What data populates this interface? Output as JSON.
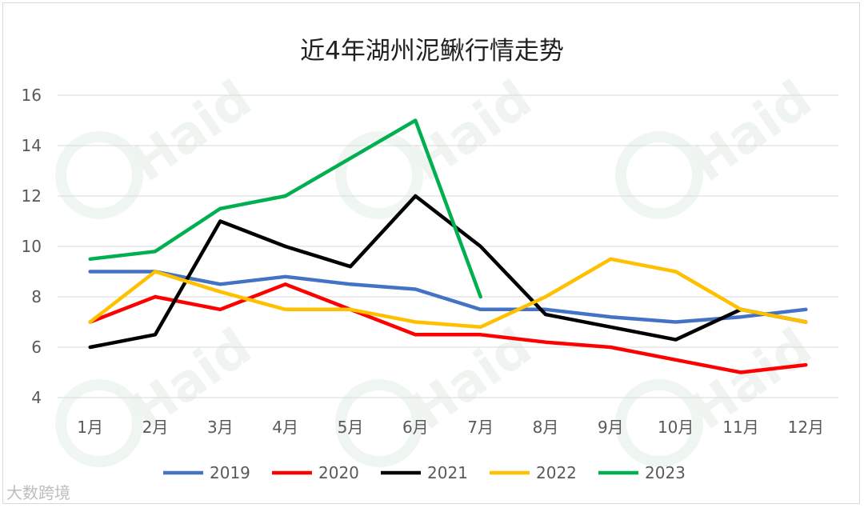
{
  "chart_data": {
    "type": "line",
    "title": "近4年湖州泥鳅行情走势",
    "categories": [
      "1月",
      "2月",
      "3月",
      "4月",
      "5月",
      "6月",
      "7月",
      "8月",
      "9月",
      "10月",
      "11月",
      "12月"
    ],
    "ylim": [
      4,
      16
    ],
    "yticks": [
      4,
      6,
      8,
      10,
      12,
      14,
      16
    ],
    "grid": true,
    "legend_position": "bottom",
    "series": [
      {
        "name": "2019",
        "color": "#4472C4",
        "values": [
          9.0,
          9.0,
          8.5,
          8.8,
          8.5,
          8.3,
          7.5,
          7.5,
          7.2,
          7.0,
          7.2,
          7.5
        ]
      },
      {
        "name": "2020",
        "color": "#FF0000",
        "values": [
          7.0,
          8.0,
          7.5,
          8.5,
          7.5,
          6.5,
          6.5,
          6.2,
          6.0,
          5.5,
          5.0,
          5.3
        ]
      },
      {
        "name": "2021",
        "color": "#000000",
        "values": [
          6.0,
          6.5,
          11.0,
          10.0,
          9.2,
          12.0,
          10.0,
          7.3,
          6.8,
          6.3,
          7.5,
          7.0
        ]
      },
      {
        "name": "2022",
        "color": "#FFC000",
        "values": [
          7.0,
          9.0,
          8.2,
          7.5,
          7.5,
          7.0,
          6.8,
          8.0,
          9.5,
          9.0,
          7.5,
          7.0
        ]
      },
      {
        "name": "2023",
        "color": "#00B050",
        "values": [
          9.5,
          9.8,
          11.5,
          12.0,
          13.5,
          15.0,
          8.0,
          null,
          null,
          null,
          null,
          null
        ]
      }
    ]
  },
  "watermark": {
    "brand": "Haid",
    "footer_text": "大数跨境"
  }
}
